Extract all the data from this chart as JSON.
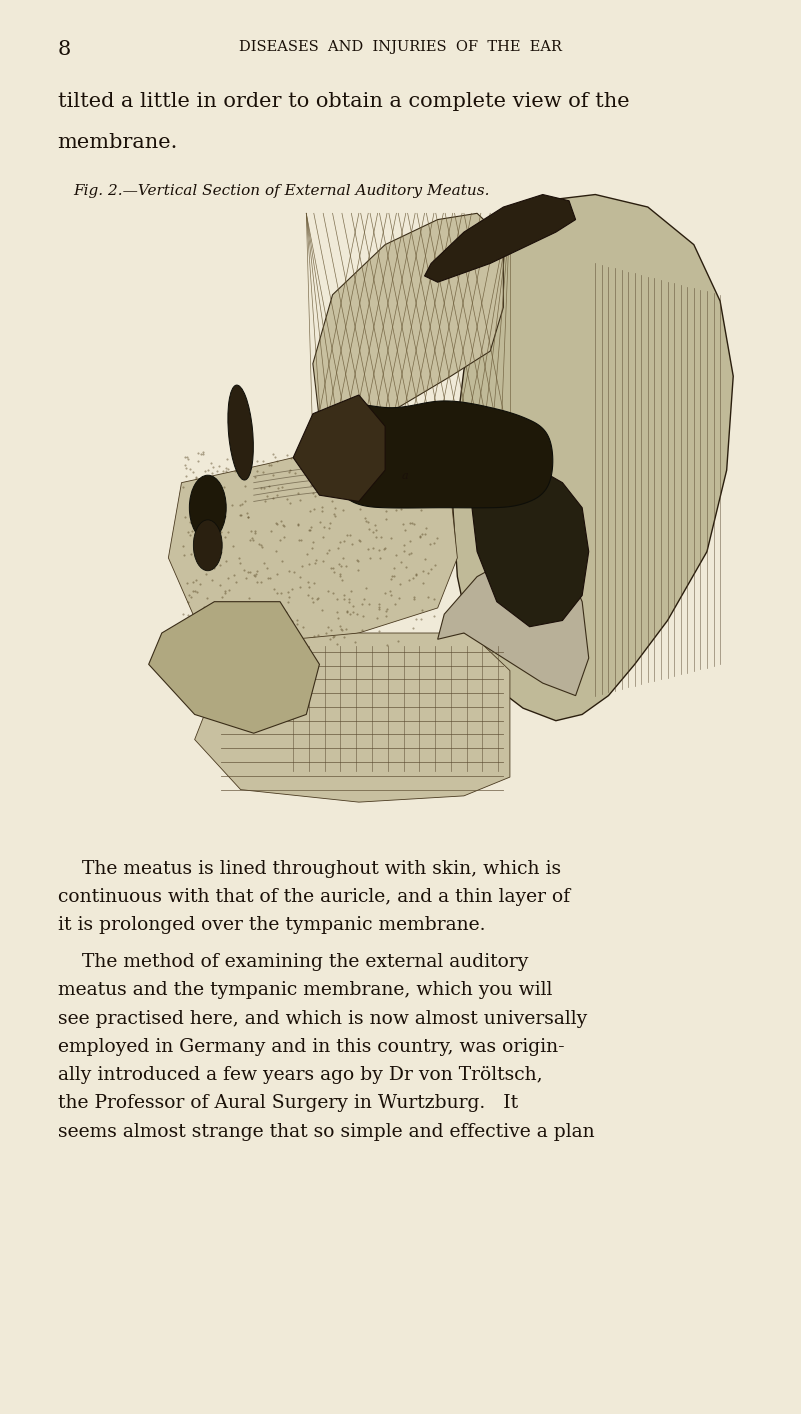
{
  "background_color": "#f0ead8",
  "page_number": "8",
  "header_text": "DISEASES  AND  INJURIES  OF  THE  EAR",
  "intro_line1": "tilted a little in order to obtain a complete view of the",
  "intro_line2": "membrane.",
  "fig_caption": "Fig. 2.—Vertical Section of External Auditory Meatus.",
  "body_para1_lines": [
    "    The meatus is lined throughout with skin, which is",
    "continuous with that of the auricle, and a thin layer of",
    "it is prolonged over the tympanic membrane."
  ],
  "body_para2_lines": [
    "    The method of examining the external auditory",
    "meatus and the tympanic membrane, which you will",
    "see practised here, and which is now almost universally",
    "employed in Germany and in this country, was origin-",
    "ally introduced a few years ago by Dr von Tröltsch,",
    "the Professor of Aural Surgery in Wurtzburg.   It",
    "seems almost strange that so simple and effective a plan"
  ],
  "text_color": "#1a1008",
  "header_fontsize": 10.5,
  "page_num_fontsize": 15,
  "intro_fontsize": 15,
  "caption_fontsize": 11,
  "body_fontsize": 13.5,
  "lmargin": 0.072
}
